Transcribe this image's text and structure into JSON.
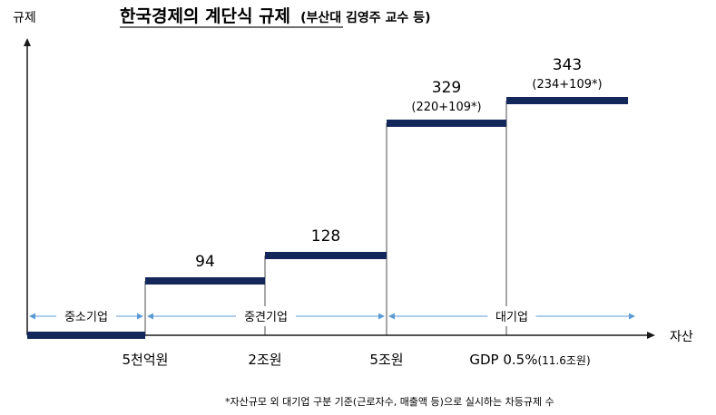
{
  "chart_data": {
    "type": "step",
    "title": "한국경제의 계단식 규제",
    "subtitle": "(부산대 김영주 교수 등)",
    "ylabel": "규제",
    "xlabel": "자산",
    "x_ticks": [
      {
        "label": "5천억원",
        "note": ""
      },
      {
        "label": "2조원",
        "note": ""
      },
      {
        "label": "5조원",
        "note": ""
      },
      {
        "label": "GDP 0.5%",
        "note": "(11.6조원)"
      }
    ],
    "steps": [
      {
        "value": 0,
        "label": "",
        "detail": ""
      },
      {
        "value": 94,
        "label": "94",
        "detail": ""
      },
      {
        "value": 128,
        "label": "128",
        "detail": ""
      },
      {
        "value": 329,
        "label": "329",
        "detail": "(220+109*)"
      },
      {
        "value": 343,
        "label": "343",
        "detail": "(234+109*)"
      }
    ],
    "bands": [
      {
        "label": "중소기업",
        "from_step": 0,
        "to_step": 1
      },
      {
        "label": "중견기업",
        "from_step": 1,
        "to_step": 3
      },
      {
        "label": "대기업",
        "from_step": 3,
        "to_step": 5
      }
    ],
    "footnote": "*자산규모 외 대기업 구분 기준(근로자수, 매출액 등)으로 실시하는 차등규제 수",
    "colors": {
      "step": "#14275a",
      "band": "#5b9bd5",
      "axis": "#1a1a1a"
    }
  }
}
